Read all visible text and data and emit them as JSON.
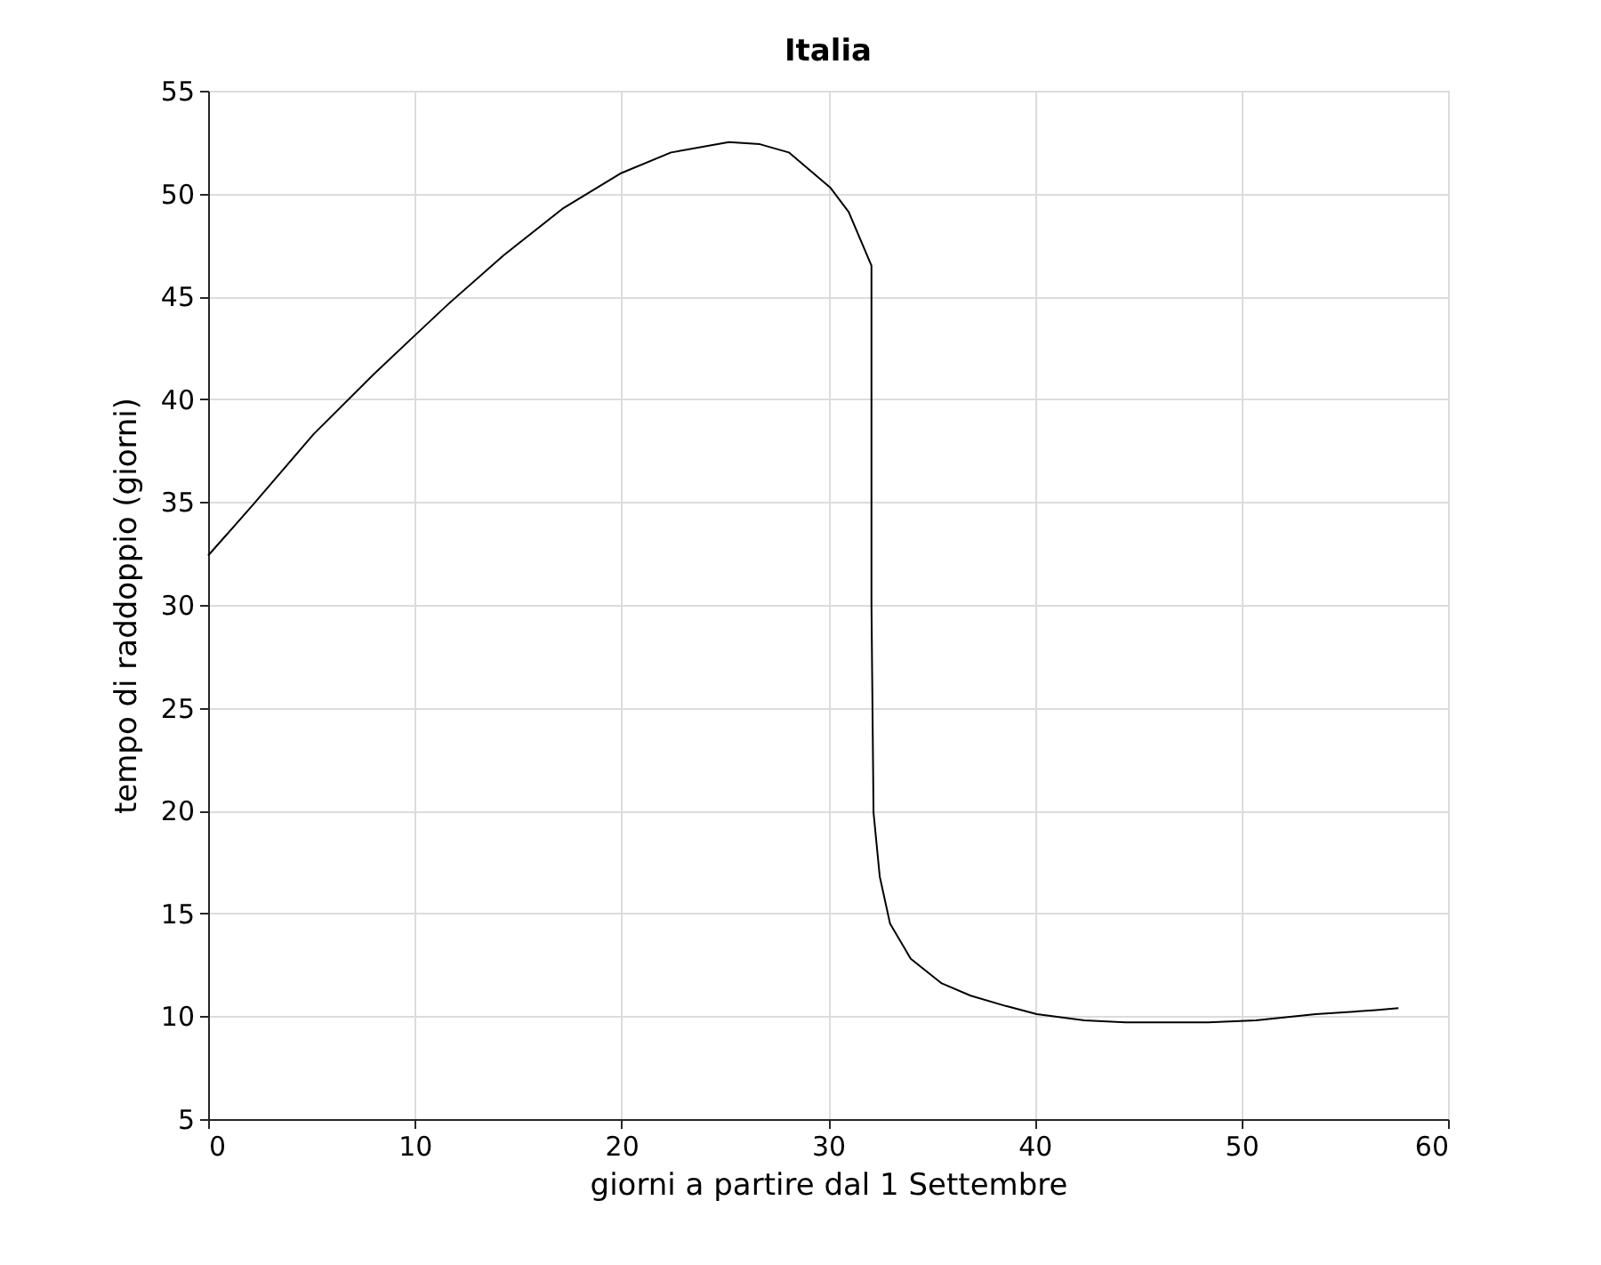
{
  "chart_data": {
    "type": "line",
    "title": "Italia",
    "xlabel": "giorni a partire dal 1 Settembre",
    "ylabel": "tempo di raddoppio (giorni)",
    "xlim": [
      0,
      60
    ],
    "xticks": [
      0,
      10,
      20,
      30,
      40,
      50,
      60
    ],
    "ylim": [
      5,
      55
    ],
    "yticks": [
      5,
      10,
      15,
      20,
      25,
      30,
      35,
      40,
      45,
      50,
      55
    ],
    "grid": true,
    "marker": "none",
    "line_style": "solid",
    "series": [
      {
        "color": "#000000",
        "x": [
          0,
          2.2,
          5.1,
          8,
          10,
          11.7,
          14.3,
          17.2,
          20,
          22.4,
          25.2,
          26.7,
          28.1,
          30.1,
          31,
          32.1,
          32.1,
          32.1,
          32.2,
          32.5,
          33,
          34,
          35.5,
          36.9,
          38.6,
          40.1,
          42.4,
          44.4,
          48.4,
          50.7,
          53.6,
          56.5,
          57.6
        ],
        "values": [
          32.4,
          34.9,
          38.3,
          41.2,
          43.1,
          44.7,
          47,
          49.3,
          51,
          52,
          52.5,
          52.4,
          52,
          50.3,
          49.1,
          46.5,
          39.8,
          30,
          19.9,
          16.8,
          14.5,
          12.8,
          11.6,
          11,
          10.5,
          10.1,
          9.8,
          9.7,
          9.7,
          9.8,
          10.1,
          10.3,
          10.4
        ]
      }
    ]
  }
}
